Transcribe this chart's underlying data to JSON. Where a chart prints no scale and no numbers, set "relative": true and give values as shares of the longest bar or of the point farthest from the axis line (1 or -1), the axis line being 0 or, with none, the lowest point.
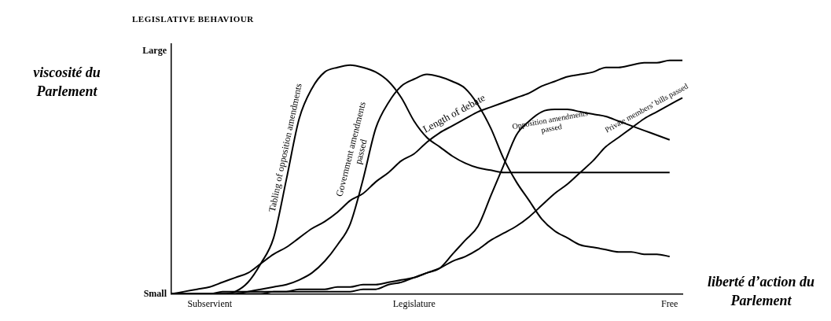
{
  "chart_data": {
    "type": "line",
    "title": "LEGISLATIVE BEHAVIOUR",
    "xlabel": "liberté d’action du Parlement",
    "ylabel": "viscosité du Parlement",
    "relative": true,
    "legend": false,
    "marker": "none",
    "line_style": "solid",
    "annotations": [
      "Large",
      "Small"
    ],
    "categories": [
      null,
      null,
      null,
      "Subservient",
      null,
      null,
      null,
      null,
      null,
      null,
      null,
      null,
      null,
      null,
      null,
      null,
      null,
      null,
      null,
      "Legislature",
      null,
      null,
      null,
      null,
      null,
      null,
      null,
      null,
      null,
      null,
      null,
      null,
      null,
      null,
      null,
      null,
      null,
      null,
      null,
      "Free",
      null
    ],
    "series": [
      {
        "name": "Tabling of opposition amendments",
        "color": "#000000",
        "values": [
          0,
          0,
          0,
          0,
          0,
          0.01,
          0.05,
          0.13,
          0.24,
          0.49,
          0.75,
          0.88,
          0.95,
          0.97,
          0.98,
          0.97,
          0.95,
          0.91,
          0.84,
          0.74,
          0.67,
          0.63,
          0.59,
          0.56,
          0.54,
          0.53,
          0.52,
          0.52,
          0.52,
          0.52,
          0.52,
          0.52,
          0.52,
          0.52,
          0.52,
          0.52,
          0.52,
          0.52,
          0.52,
          0.52,
          null
        ]
      },
      {
        "name": "Government amendments passed",
        "color": "#000000",
        "values": [
          0,
          0,
          0,
          0,
          0,
          0,
          0.01,
          0.02,
          0.03,
          0.04,
          0.06,
          0.09,
          0.14,
          0.21,
          0.3,
          0.49,
          0.71,
          0.82,
          0.89,
          0.92,
          0.94,
          0.93,
          0.91,
          0.88,
          0.81,
          0.71,
          0.58,
          0.48,
          0.4,
          0.32,
          0.27,
          0.24,
          0.21,
          0.2,
          0.19,
          0.18,
          0.18,
          0.17,
          0.17,
          0.16,
          null
        ]
      },
      {
        "name": "Length of debate",
        "color": "#000000",
        "values": [
          0,
          0.01,
          0.02,
          0.03,
          0.05,
          0.07,
          0.09,
          0.13,
          0.17,
          0.2,
          0.24,
          0.28,
          0.31,
          0.35,
          0.4,
          0.43,
          0.48,
          0.52,
          0.57,
          0.6,
          0.65,
          0.69,
          0.72,
          0.75,
          0.78,
          0.8,
          0.82,
          0.84,
          0.86,
          0.89,
          0.91,
          0.93,
          0.94,
          0.95,
          0.97,
          0.97,
          0.98,
          0.99,
          0.99,
          1,
          1
        ]
      },
      {
        "name": "Opposition amendments passed",
        "color": "#000000",
        "values": [
          0,
          0,
          0,
          0,
          0,
          0,
          0,
          0,
          0.01,
          0.01,
          0.01,
          0.01,
          0.01,
          0.01,
          0.01,
          0.02,
          0.02,
          0.04,
          0.05,
          0.07,
          0.09,
          0.11,
          0.17,
          0.23,
          0.29,
          0.42,
          0.55,
          0.68,
          0.74,
          0.78,
          0.79,
          0.79,
          0.78,
          0.77,
          0.76,
          0.74,
          0.72,
          0.7,
          0.68,
          0.66,
          null
        ]
      },
      {
        "name": "Private members’ bills passed",
        "color": "#000000",
        "values": [
          0,
          0,
          0,
          0,
          0.01,
          0.01,
          0.01,
          0.01,
          0.01,
          0.01,
          0.02,
          0.02,
          0.02,
          0.03,
          0.03,
          0.04,
          0.04,
          0.05,
          0.06,
          0.07,
          0.09,
          0.11,
          0.14,
          0.16,
          0.19,
          0.23,
          0.26,
          0.29,
          0.33,
          0.38,
          0.43,
          0.47,
          0.52,
          0.57,
          0.63,
          0.67,
          0.71,
          0.75,
          0.78,
          0.81,
          0.84
        ]
      }
    ]
  }
}
